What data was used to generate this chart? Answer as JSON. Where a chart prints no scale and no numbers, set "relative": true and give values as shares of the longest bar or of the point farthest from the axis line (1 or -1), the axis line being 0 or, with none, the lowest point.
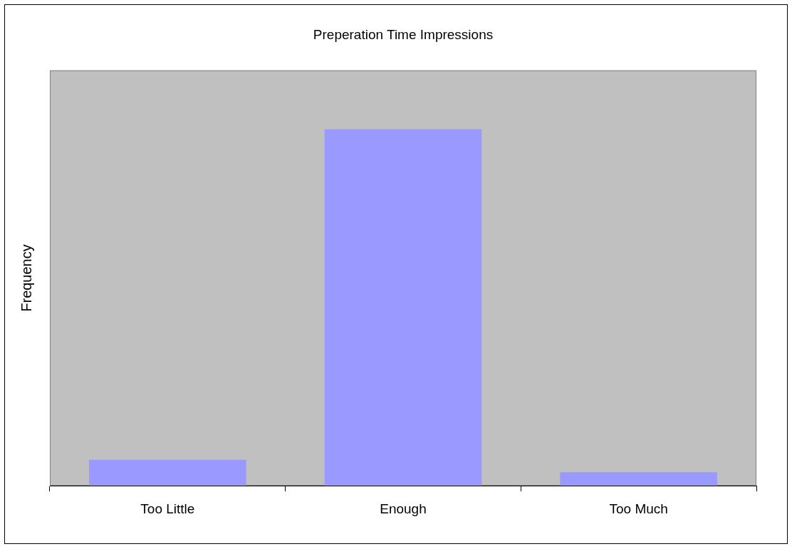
{
  "chart_data": {
    "type": "bar",
    "title": "Preperation Time Impressions",
    "ylabel": "Frequency",
    "categories": [
      "Too Little",
      "Enough",
      "Too Much"
    ],
    "values": [
      0.073,
      1,
      0.038
    ],
    "color": "#9999ff",
    "relative": true,
    "grid": false,
    "legend": false
  }
}
